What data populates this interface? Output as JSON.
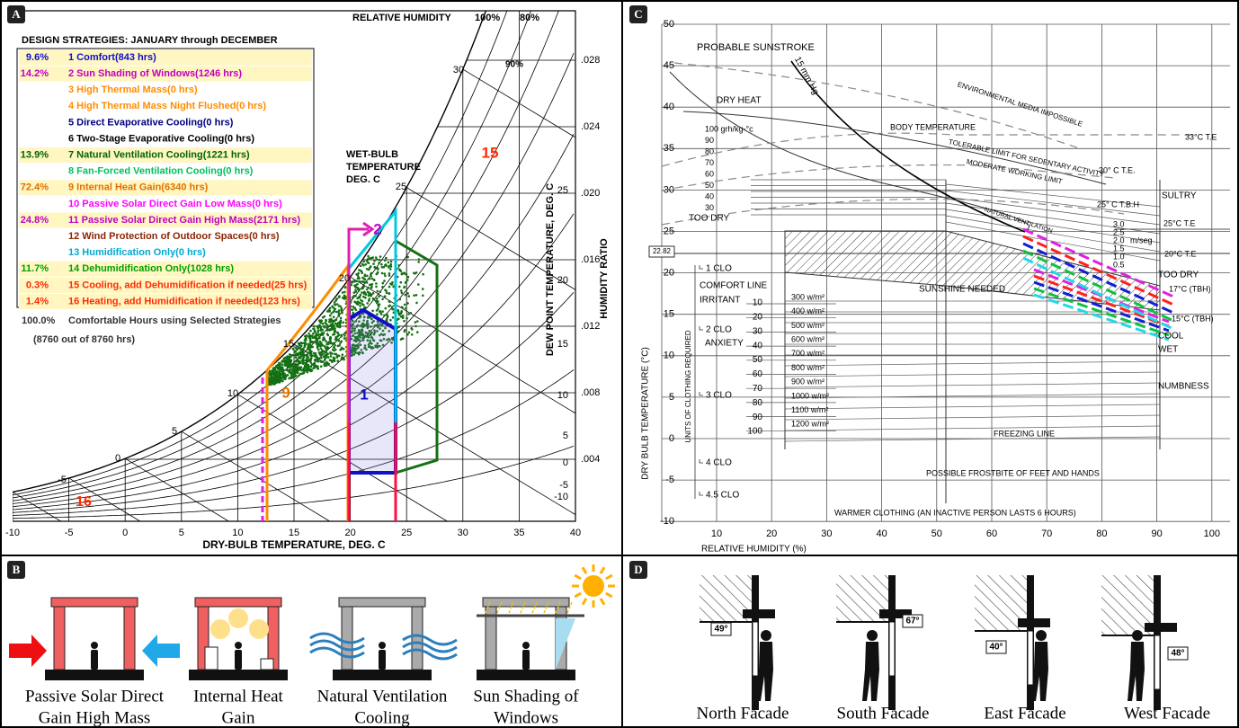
{
  "panel_a": {
    "letter": "A",
    "relative_humidity": "RELATIVE HUMIDITY",
    "rh_100": "100%",
    "rh_80": "80%",
    "rh_90": "90%",
    "list_title": "DESIGN STRATEGIES: JANUARY through DECEMBER",
    "strategies": [
      {
        "percent": "9.6%",
        "label": "1 Comfort(843 hrs)",
        "color": "#1010c8"
      },
      {
        "percent": "14.2%",
        "label": "2 Sun Shading of Windows(1246 hrs)",
        "color": "#c000c0"
      },
      {
        "label": "3 High Thermal Mass(0 hrs)",
        "color": "#ff8c00"
      },
      {
        "label": "4 High Thermal Mass Night Flushed(0 hrs)",
        "color": "#ff8c00"
      },
      {
        "label": "5 Direct Evaporative Cooling(0 hrs)",
        "color": "#000080"
      },
      {
        "label": "6 Two-Stage Evaporative Cooling(0 hrs)",
        "color": "#000000"
      },
      {
        "percent": "13.9%",
        "label": "7 Natural Ventilation Cooling(1221 hrs)",
        "color": "#006400"
      },
      {
        "label": "8 Fan-Forced Ventilation Cooling(0 hrs)",
        "color": "#00c060"
      },
      {
        "percent": "72.4%",
        "label": "9 Internal Heat Gain(6340 hrs)",
        "color": "#e07000"
      },
      {
        "label": "10 Passive Solar Direct Gain Low Mass(0 hrs)",
        "color": "#ff00ff"
      },
      {
        "percent": "24.8%",
        "label": "11 Passive Solar Direct Gain High Mass(2171 hrs)",
        "color": "#c000c0"
      },
      {
        "label": "12 Wind Protection of Outdoor Spaces(0 hrs)",
        "color": "#8b2500"
      },
      {
        "label": "13 Humidification Only(0 hrs)",
        "color": "#00a8d0"
      },
      {
        "percent": "11.7%",
        "label": "14 Dehumidification Only(1028 hrs)",
        "color": "#00a000"
      },
      {
        "percent": "0.3%",
        "label": "15 Cooling, add Dehumidification if needed(25 hrs)",
        "color": "#ff2a00"
      },
      {
        "percent": "1.4%",
        "label": "16 Heating, add Humidification if needed(123 hrs)",
        "color": "#ff2a00"
      }
    ],
    "summary_percent": "100.0%",
    "summary_label": "Comfortable Hours using Selected Strategies",
    "summary_detail": "(8760 out of 8760 hrs)",
    "wet_bulb_title": [
      "WET-BULB",
      "TEMPERATURE",
      "DEG. C"
    ],
    "x_axis_title": "DRY-BULB TEMPERATURE, DEG. C",
    "x_ticks": [
      -10,
      -5,
      0,
      5,
      10,
      15,
      20,
      25,
      30,
      35,
      40
    ],
    "wet_bulb_ticks": [
      30,
      25,
      20,
      15,
      10,
      5,
      0,
      -5
    ],
    "dew_point_title": "DEW POINT TEMPERATURE, DEG. C",
    "dew_point_ticks": [
      25,
      20,
      15,
      10,
      5,
      0,
      -5,
      -10
    ],
    "humidity_ratio_title": "HUMIDITY RATIO",
    "humidity_ratio_ticks": [
      ".028",
      ".024",
      ".020",
      ".016",
      ".012",
      ".008",
      ".004"
    ],
    "zone_labels": [
      {
        "text": "1",
        "color": "#1010c8"
      },
      {
        "text": "2",
        "color": "#c000c0"
      },
      {
        "text": "9",
        "color": "#e07000"
      },
      {
        "text": "15",
        "color": "#ff2a00"
      },
      {
        "text": "16",
        "color": "#ff2a00"
      }
    ]
  },
  "panel_b": {
    "letter": "B",
    "captions": [
      [
        "Passive Solar Direct",
        "Gain High Mass"
      ],
      [
        "Internal Heat",
        "Gain"
      ],
      [
        "Natural Ventilation",
        "Cooling"
      ],
      [
        "Sun Shading of",
        "Windows"
      ]
    ]
  },
  "panel_c": {
    "letter": "C",
    "y_ticks": [
      50,
      45,
      40,
      35,
      30,
      25,
      20,
      15,
      10,
      5,
      0,
      -5,
      -10
    ],
    "x_ticks": [
      10,
      20,
      30,
      40,
      50,
      60,
      70,
      80,
      90,
      100
    ],
    "x_axis_title": "RELATIVE HUMIDITY (%)",
    "y_axis_title": "DRY BULB TEMPERATURE (°C)",
    "marker_value": "22.82",
    "zone_labels": [
      "PROBABLE SUNSTROKE",
      "DRY HEAT",
      "ENVIRONMENTAL MEDIA IMPOSSIBLE",
      "BODY TEMPERATURE",
      "TOLERABLE LIMIT FOR SEDENTARY ACTIVITY",
      "MODERATE WORKING LIMIT",
      "NATURAL VENTILATION",
      "SULTRY",
      "TOO DRY",
      "TOO DRY",
      "COMFORT LINE",
      "IRRITANT",
      "SUNSHINE NEEDED",
      "ANXIETY",
      "COOL",
      "WET",
      "NUMBNESS",
      "FREEZING LINE",
      "POSSIBLE FROSTBITE OF FEET AND HANDS",
      "WARMER CLOTHING (AN INACTIVE PERSON LASTS 6 HOURS)",
      "15 mm Hg"
    ],
    "temperature_labels": [
      "33°C  T.E",
      "30° C  T.E.",
      "25° C  T.B.H",
      "25°C  T.E",
      "20°C  T.E",
      "17°C (TBH)",
      "15°C (TBH)"
    ],
    "moisture_labels": [
      "100  grh/kg-°c",
      "90",
      "80",
      "70",
      "60",
      "50",
      "40",
      "30"
    ],
    "wind_speed_labels": [
      "3.0",
      "2.5",
      "2.0",
      "1.5",
      "1.0",
      "0.5",
      "m/seg"
    ],
    "clothing_labels": [
      "1  CLO",
      "2  CLO",
      "3  CLO",
      "4  CLO",
      "4.5  CLO"
    ],
    "clothing_title": "UNITS OF CLOTHING REQUIRED",
    "wind_labels": [
      "10",
      "20",
      "30",
      "40",
      "50",
      "60",
      "70",
      "80",
      "90",
      "100"
    ],
    "radiation_labels": [
      "300 w/m²",
      "400 w/m²",
      "500 w/m²",
      "600 w/m²",
      "700 w/m²",
      "800 w/m²",
      "900 w/m²",
      "1000 w/m²",
      "1100 w/m²",
      "1200 w/m²"
    ]
  },
  "panel_d": {
    "letter": "D",
    "captions": [
      "North Facade",
      "South Facade",
      "East Facade",
      "West Facade"
    ],
    "angles": [
      "49°",
      "67°",
      "40°",
      "48°"
    ]
  }
}
